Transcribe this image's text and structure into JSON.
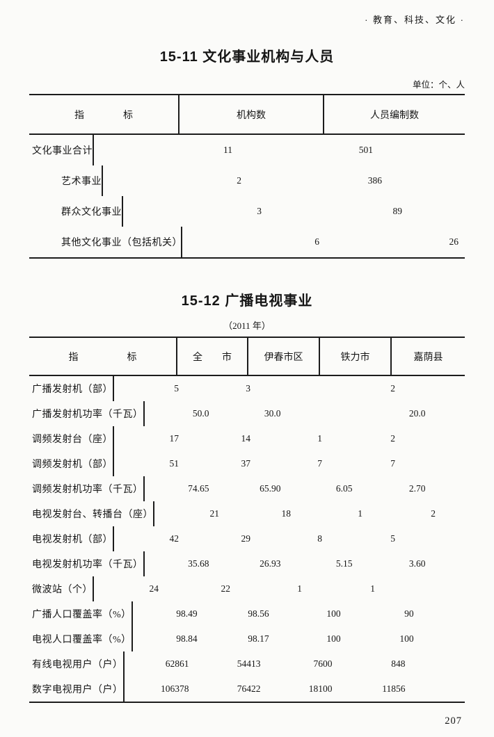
{
  "page": {
    "running_head": "·  教育、科技、文化  ·",
    "page_number": "207"
  },
  "table1": {
    "title": "15-11  文化事业机构与人员",
    "unit_label": "单位：个、人",
    "columns": [
      "指　　　　标",
      "机构数",
      "人员编制数"
    ],
    "rows": [
      {
        "label": "文化事业合计",
        "indent": 0,
        "values": [
          "11",
          "501"
        ]
      },
      {
        "label": "艺术事业",
        "indent": 1,
        "values": [
          "2",
          "386"
        ]
      },
      {
        "label": "群众文化事业",
        "indent": 1,
        "values": [
          "3",
          "89"
        ]
      },
      {
        "label": "其他文化事业（包括机关）",
        "indent": 1,
        "values": [
          "6",
          "26"
        ]
      }
    ]
  },
  "table2": {
    "title": "15-12 广播电视事业",
    "subtitle": "（2011 年）",
    "columns": [
      "指　　　　　标",
      "全　　市",
      "伊春市区",
      "铁力市",
      "嘉荫县"
    ],
    "rows": [
      {
        "label": "广播发射机（部）",
        "values": [
          "5",
          "3",
          "",
          "2"
        ]
      },
      {
        "label": "广播发射机功率（千瓦）",
        "values": [
          "50.0",
          "30.0",
          "",
          "20.0"
        ]
      },
      {
        "label": "调频发射台（座）",
        "values": [
          "17",
          "14",
          "1",
          "2"
        ]
      },
      {
        "label": "调频发射机（部）",
        "values": [
          "51",
          "37",
          "7",
          "7"
        ]
      },
      {
        "label": "调频发射机功率（千瓦）",
        "values": [
          "74.65",
          "65.90",
          "6.05",
          "2.70"
        ]
      },
      {
        "label": "电视发射台、转播台（座）",
        "values": [
          "21",
          "18",
          "1",
          "2"
        ]
      },
      {
        "label": "电视发射机（部）",
        "values": [
          "42",
          "29",
          "8",
          "5"
        ]
      },
      {
        "label": "电视发射机功率（千瓦）",
        "values": [
          "35.68",
          "26.93",
          "5.15",
          "3.60"
        ]
      },
      {
        "label": "微波站（个）",
        "values": [
          "24",
          "22",
          "1",
          "1"
        ]
      },
      {
        "label": "广播人口覆盖率（%）",
        "values": [
          "98.49",
          "98.56",
          "100",
          "90"
        ]
      },
      {
        "label": "电视人口覆盖率（%）",
        "values": [
          "98.84",
          "98.17",
          "100",
          "100"
        ]
      },
      {
        "label": "有线电视用户（户）",
        "values": [
          "62861",
          "54413",
          "7600",
          "848"
        ]
      },
      {
        "label": "数字电视用户（户）",
        "values": [
          "106378",
          "76422",
          "18100",
          "11856"
        ]
      }
    ]
  }
}
